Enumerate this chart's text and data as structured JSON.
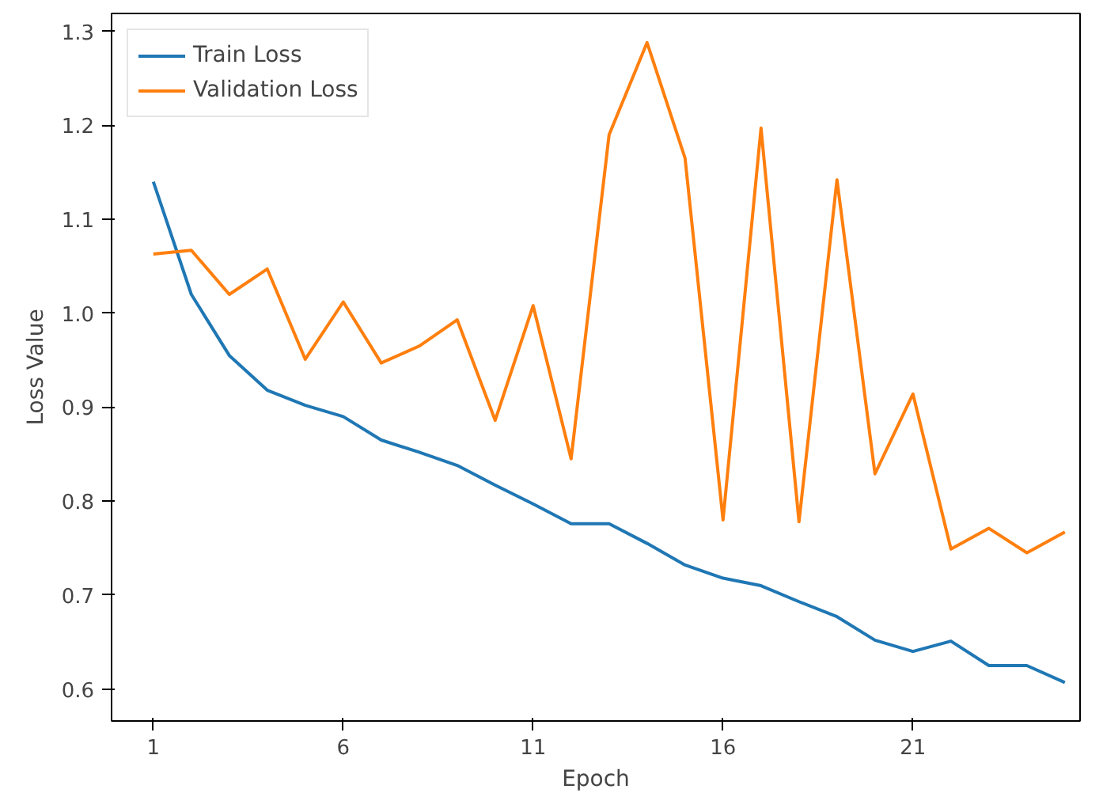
{
  "chart_data": {
    "type": "line",
    "xlabel": "Epoch",
    "ylabel": "Loss Value",
    "x": [
      1,
      2,
      3,
      4,
      5,
      6,
      7,
      8,
      9,
      10,
      11,
      12,
      13,
      14,
      15,
      16,
      17,
      18,
      19,
      20,
      21,
      22,
      23,
      24,
      25
    ],
    "series": [
      {
        "name": "Train Loss",
        "color": "#1f77b4",
        "values": [
          1.14,
          1.02,
          0.955,
          0.918,
          0.902,
          0.89,
          0.865,
          0.852,
          0.838,
          0.817,
          0.797,
          0.776,
          0.776,
          0.755,
          0.732,
          0.718,
          0.71,
          0.693,
          0.677,
          0.652,
          0.64,
          0.651,
          0.625,
          0.625,
          0.607
        ]
      },
      {
        "name": "Validation Loss",
        "color": "#ff7f0e",
        "values": [
          1.063,
          1.067,
          1.02,
          1.047,
          0.951,
          1.012,
          0.947,
          0.965,
          0.993,
          0.886,
          1.008,
          0.845,
          1.19,
          1.288,
          1.165,
          0.78,
          1.197,
          0.778,
          1.142,
          0.829,
          0.914,
          0.749,
          0.771,
          0.745,
          0.767
        ]
      }
    ],
    "xlim": [
      -0.1,
      25.4
    ],
    "xticks": [
      1,
      6,
      11,
      16,
      21
    ],
    "ylim": [
      0.566,
      1.319
    ],
    "yticks": [
      {
        "value": 0.6,
        "label": "0.6"
      },
      {
        "value": 0.7,
        "label": "0.7"
      },
      {
        "value": 0.8,
        "label": "0.8"
      },
      {
        "value": 0.9,
        "label": "0.9"
      },
      {
        "value": 1.0,
        "label": "1.0"
      },
      {
        "value": 1.1,
        "label": "1.1"
      },
      {
        "value": 1.2,
        "label": "1.2"
      },
      {
        "value": 1.3,
        "label": "1.3"
      }
    ],
    "legend": "top left",
    "grid": false
  }
}
